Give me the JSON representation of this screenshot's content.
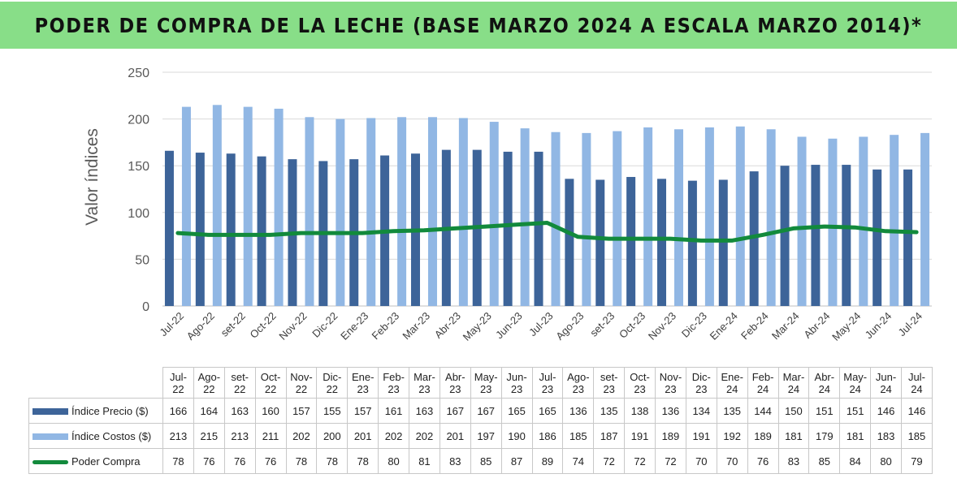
{
  "title": "PODER DE COMPRA DE LA LECHE (BASE MARZO 2024 A ESCALA MARZO 2014)*",
  "colors": {
    "banner": "#88de88",
    "precio": "#3d6499",
    "costos": "#91b7e4",
    "poder": "#128a3c"
  },
  "chart_data": {
    "type": "bar",
    "ylabel": "Valor índices",
    "ylim": [
      0,
      250
    ],
    "yticks": [
      0,
      50,
      100,
      150,
      200,
      250
    ],
    "grid": true,
    "categories": [
      "Jul-22",
      "Ago-22",
      "set-22",
      "Oct-22",
      "Nov-22",
      "Dic-22",
      "Ene-23",
      "Feb-23",
      "Mar-23",
      "Abr-23",
      "May-23",
      "Jun-23",
      "Jul-23",
      "Ago-23",
      "set-23",
      "Oct-23",
      "Nov-23",
      "Dic-23",
      "Ene-24",
      "Feb-24",
      "Mar-24",
      "Abr-24",
      "May-24",
      "Jun-24",
      "Jul-24"
    ],
    "series": [
      {
        "name": "Índice Precio ($)",
        "type": "bar",
        "values": [
          166,
          164,
          163,
          160,
          157,
          155,
          157,
          161,
          163,
          167,
          167,
          165,
          165,
          136,
          135,
          138,
          136,
          134,
          135,
          144,
          150,
          151,
          151,
          146,
          146
        ]
      },
      {
        "name": "Índice Costos ($)",
        "type": "bar",
        "values": [
          213,
          215,
          213,
          211,
          202,
          200,
          201,
          202,
          202,
          201,
          197,
          190,
          186,
          185,
          187,
          191,
          189,
          191,
          192,
          189,
          181,
          179,
          181,
          183,
          185
        ]
      },
      {
        "name": "Poder Compra",
        "type": "line",
        "values": [
          78,
          76,
          76,
          76,
          78,
          78,
          78,
          80,
          81,
          83,
          85,
          87,
          89,
          74,
          72,
          72,
          72,
          70,
          70,
          76,
          83,
          85,
          84,
          80,
          79
        ]
      }
    ]
  }
}
